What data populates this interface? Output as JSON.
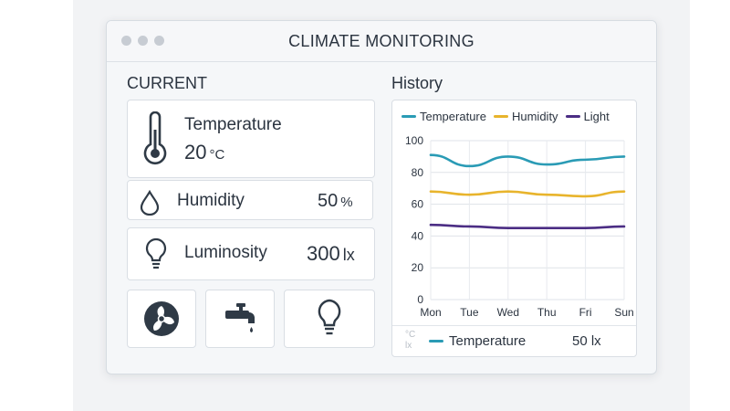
{
  "window": {
    "title": "CLIMATE MONITORING"
  },
  "current": {
    "label": "CURRENT",
    "temperature": {
      "label": "Temperature",
      "value": "20",
      "unit": "°C",
      "icon": "thermometer-icon"
    },
    "humidity": {
      "label": "Humidity",
      "value": "50",
      "unit": "%",
      "icon": "droplet-icon"
    },
    "luminosity": {
      "label": "Luminosity",
      "value": "300",
      "unit": "lx",
      "icon": "lightbulb-icon"
    }
  },
  "controls": [
    {
      "icon": "fan-icon"
    },
    {
      "icon": "faucet-icon"
    },
    {
      "icon": "lightbulb-icon"
    }
  ],
  "history": {
    "label": "History",
    "footer": {
      "units": [
        "°C",
        "lx"
      ],
      "legend_label": "Temperature",
      "value": "50 lx"
    }
  },
  "colors": {
    "temperature": "#2a9bb5",
    "humidity": "#e8b42c",
    "light": "#4b2d84",
    "icon_dark": "#2f3a46"
  },
  "chart_data": {
    "type": "line",
    "x": [
      "Mon",
      "Tue",
      "Wed",
      "Thu",
      "Fri",
      "Sun"
    ],
    "ylim": [
      0,
      100
    ],
    "yticks": [
      0,
      20,
      40,
      60,
      80,
      100
    ],
    "grid": true,
    "legend_position": "top",
    "series": [
      {
        "name": "Temperature",
        "color": "#2a9bb5",
        "values": [
          91,
          84,
          90,
          85,
          88,
          90
        ]
      },
      {
        "name": "Humidity",
        "color": "#e8b42c",
        "values": [
          68,
          66,
          68,
          66,
          65,
          68
        ]
      },
      {
        "name": "Light",
        "color": "#4b2d84",
        "values": [
          47,
          46,
          45,
          45,
          45,
          46
        ]
      }
    ]
  }
}
